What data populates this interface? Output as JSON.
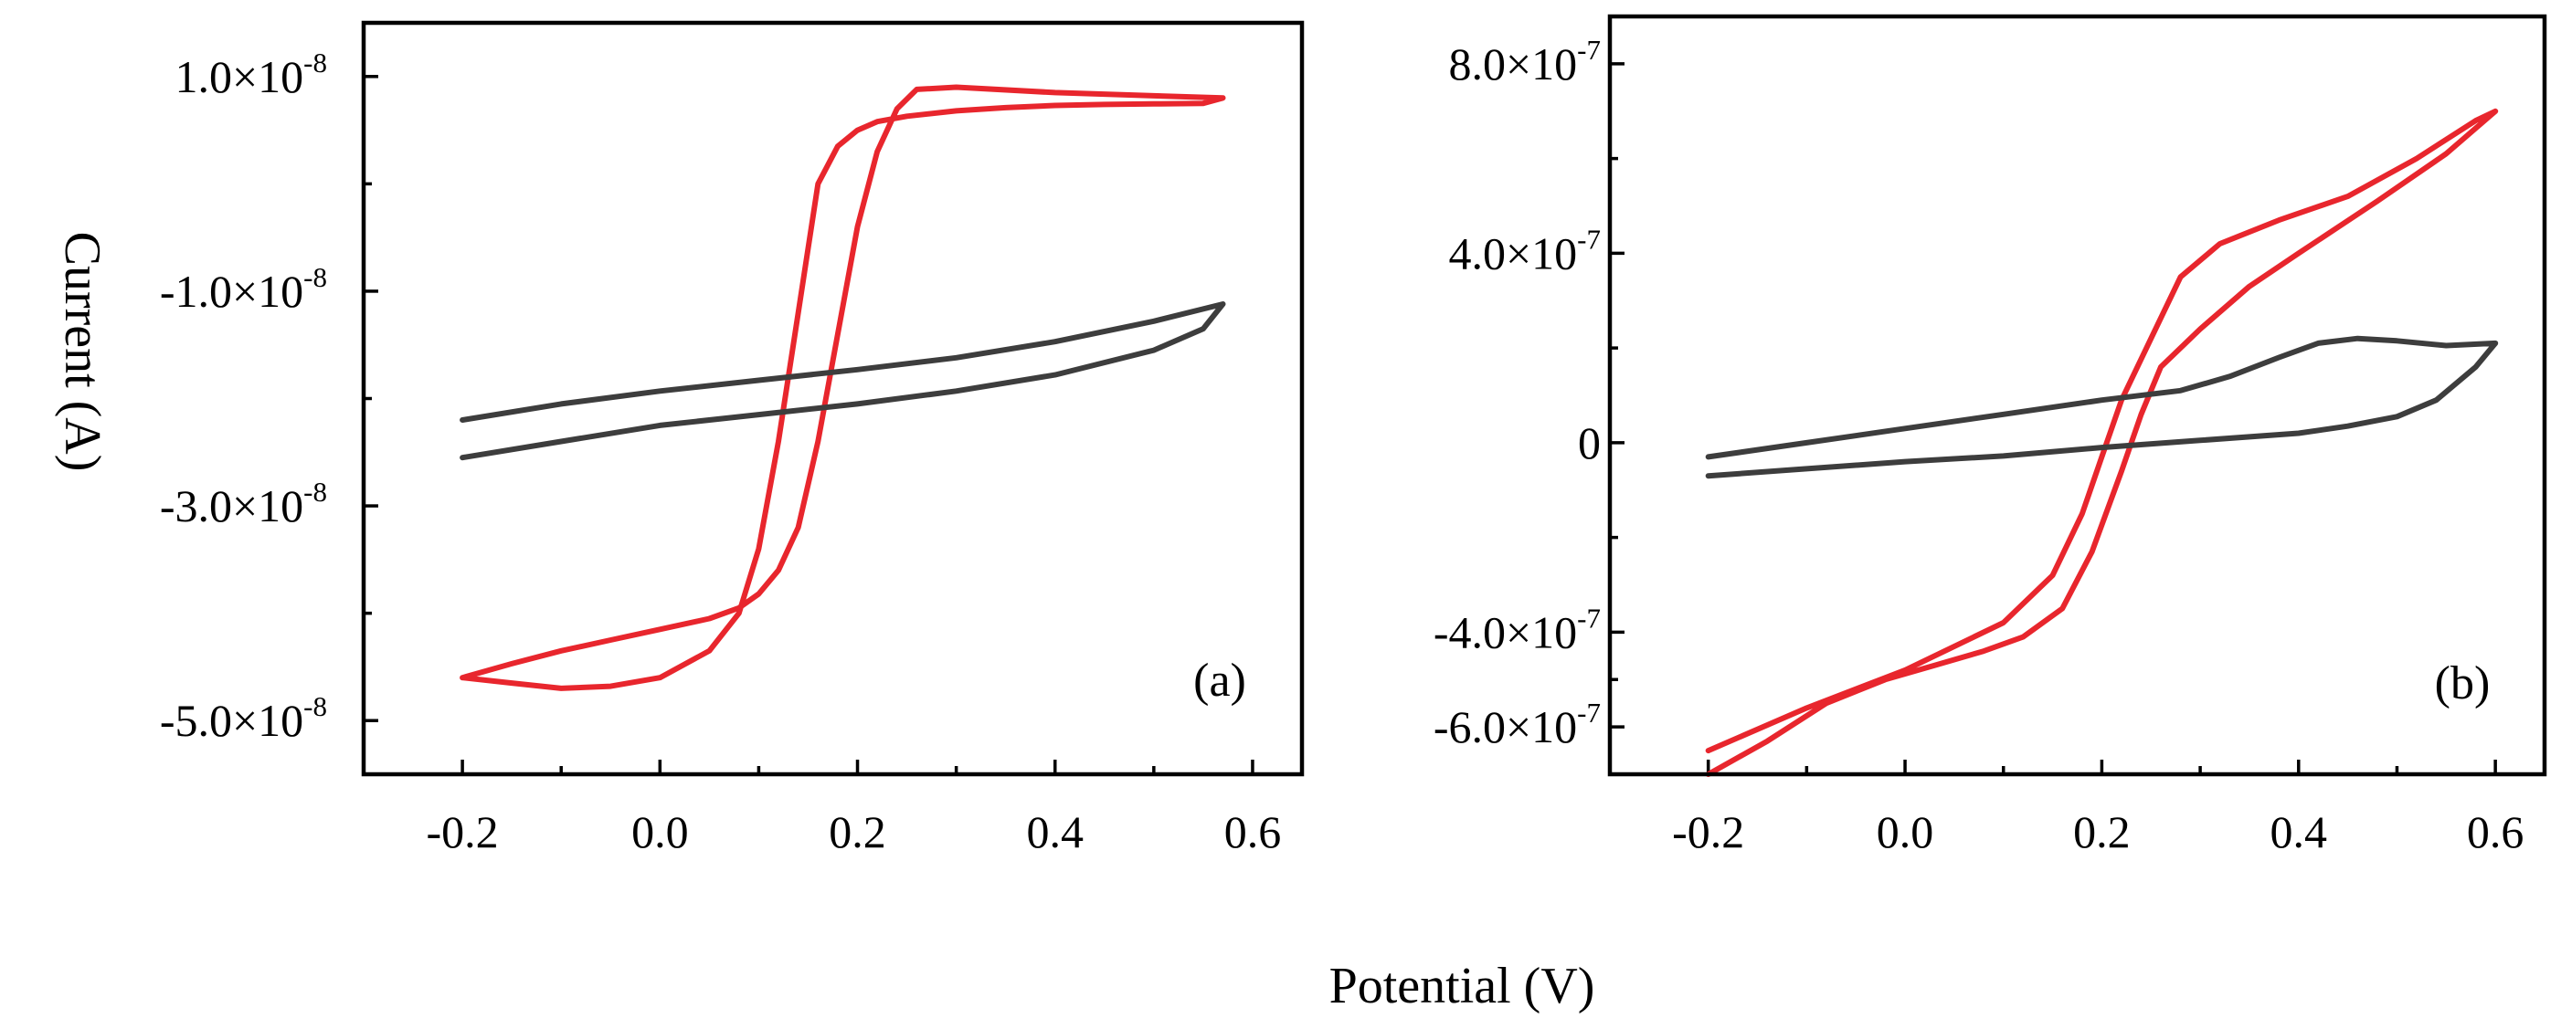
{
  "figure": {
    "ylabel": "Current (A)",
    "xlabel": "Potential  (V)"
  },
  "chart_data": [
    {
      "type": "line",
      "panel": "(a)",
      "xlim": [
        -0.3,
        0.65
      ],
      "ylim": [
        -5.5e-08,
        1.5e-08
      ],
      "xticks": [
        -0.2,
        0.0,
        0.2,
        0.4,
        0.6
      ],
      "xtick_labels": [
        "-0.2",
        "0.0",
        "0.2",
        "0.4",
        "0.6"
      ],
      "yticks": [
        {
          "value": 1e-08,
          "mantissa": "1.0",
          "exp": "-8"
        },
        {
          "value": -1e-08,
          "mantissa": "-1.0",
          "exp": "-8"
        },
        {
          "value": -3e-08,
          "mantissa": "-3.0",
          "exp": "-8"
        },
        {
          "value": -5e-08,
          "mantissa": "-5.0",
          "exp": "-8"
        }
      ],
      "series": [
        {
          "name": "red",
          "color": "#e8262d",
          "x": [
            -0.2,
            -0.15,
            -0.1,
            -0.05,
            0.0,
            0.05,
            0.08,
            0.1,
            0.12,
            0.14,
            0.16,
            0.18,
            0.2,
            0.22,
            0.25,
            0.3,
            0.35,
            0.4,
            0.45,
            0.5,
            0.55,
            0.57,
            0.5,
            0.4,
            0.3,
            0.26,
            0.24,
            0.22,
            0.2,
            0.18,
            0.16,
            0.14,
            0.12,
            0.1,
            0.08,
            0.05,
            0.0,
            -0.05,
            -0.1,
            -0.15,
            -0.2
          ],
          "y": [
            -4.6e-08,
            -4.65e-08,
            -4.7e-08,
            -4.68e-08,
            -4.6e-08,
            -4.35e-08,
            -4e-08,
            -3.4e-08,
            -2.4e-08,
            -1.2e-08,
            0.0,
            3.5e-09,
            5e-09,
            5.8e-09,
            6.3e-09,
            6.8e-09,
            7.1e-09,
            7.3e-09,
            7.4e-09,
            7.45e-09,
            7.5e-09,
            8e-09,
            8.2e-09,
            8.5e-09,
            9e-09,
            8.8e-09,
            7e-09,
            3e-09,
            -4e-09,
            -1.4e-08,
            -2.4e-08,
            -3.2e-08,
            -3.6e-08,
            -3.82e-08,
            -3.95e-08,
            -4.05e-08,
            -4.15e-08,
            -4.25e-08,
            -4.35e-08,
            -4.47e-08,
            -4.6e-08
          ]
        },
        {
          "name": "black",
          "color": "#3d3d3d",
          "x": [
            -0.2,
            -0.1,
            0.0,
            0.1,
            0.2,
            0.3,
            0.4,
            0.5,
            0.55,
            0.57,
            0.5,
            0.4,
            0.3,
            0.2,
            0.1,
            0.0,
            -0.1,
            -0.2
          ],
          "y": [
            -2.55e-08,
            -2.4e-08,
            -2.25e-08,
            -2.15e-08,
            -2.05e-08,
            -1.93e-08,
            -1.78e-08,
            -1.55e-08,
            -1.35e-08,
            -1.12e-08,
            -1.28e-08,
            -1.47e-08,
            -1.62e-08,
            -1.73e-08,
            -1.83e-08,
            -1.93e-08,
            -2.05e-08,
            -2.2e-08
          ]
        }
      ]
    },
    {
      "type": "line",
      "panel": "(b)",
      "xlim": [
        -0.3,
        0.65
      ],
      "ylim": [
        -7e-07,
        9e-07
      ],
      "xticks": [
        -0.2,
        0.0,
        0.2,
        0.4,
        0.6
      ],
      "xtick_labels": [
        "-0.2",
        "0.0",
        "0.2",
        "0.4",
        "0.6"
      ],
      "yticks": [
        {
          "value": 8e-07,
          "mantissa": "8.0",
          "exp": "-7"
        },
        {
          "value": 4e-07,
          "mantissa": "4.0",
          "exp": "-7"
        },
        {
          "value": 0,
          "mantissa": "0",
          "exp": ""
        },
        {
          "value": -4e-07,
          "mantissa": "-4.0",
          "exp": "-7"
        },
        {
          "value": -6e-07,
          "mantissa": "-6.0",
          "exp": "-7"
        }
      ],
      "series": [
        {
          "name": "red",
          "color": "#e8262d",
          "x": [
            -0.2,
            -0.1,
            0.0,
            0.1,
            0.15,
            0.18,
            0.2,
            0.22,
            0.25,
            0.28,
            0.32,
            0.38,
            0.45,
            0.52,
            0.58,
            0.6,
            0.55,
            0.48,
            0.4,
            0.35,
            0.3,
            0.26,
            0.24,
            0.22,
            0.19,
            0.16,
            0.12,
            0.08,
            0.03,
            -0.02,
            -0.08,
            -0.14,
            -0.2
          ],
          "y": [
            -6.5e-07,
            -5.6e-07,
            -4.8e-07,
            -3.8e-07,
            -2.8e-07,
            -1.5e-07,
            -3e-08,
            9e-08,
            2.2e-07,
            3.5e-07,
            4.2e-07,
            4.7e-07,
            5.2e-07,
            6e-07,
            6.8e-07,
            7e-07,
            6.1e-07,
            5.1e-07,
            4e-07,
            3.3e-07,
            2.4e-07,
            1.6e-07,
            6e-08,
            -6e-08,
            -2.3e-07,
            -3.5e-07,
            -4.1e-07,
            -4.4e-07,
            -4.7e-07,
            -5e-07,
            -5.5e-07,
            -6.3e-07,
            -7e-07
          ]
        },
        {
          "name": "black",
          "color": "#3d3d3d",
          "x": [
            -0.2,
            -0.1,
            0.0,
            0.1,
            0.2,
            0.28,
            0.33,
            0.38,
            0.42,
            0.46,
            0.5,
            0.55,
            0.6,
            0.58,
            0.54,
            0.5,
            0.45,
            0.4,
            0.3,
            0.2,
            0.1,
            0.0,
            -0.1,
            -0.2
          ],
          "y": [
            -3e-08,
            0.0,
            3e-08,
            6e-08,
            9e-08,
            1.1e-07,
            1.4e-07,
            1.8e-07,
            2.1e-07,
            2.2e-07,
            2.15e-07,
            2.05e-07,
            2.1e-07,
            1.6e-07,
            9e-08,
            5.5e-08,
            3.5e-08,
            2e-08,
            5e-09,
            -1e-08,
            -2.8e-08,
            -4e-08,
            -5.5e-08,
            -7e-08
          ]
        }
      ]
    }
  ]
}
